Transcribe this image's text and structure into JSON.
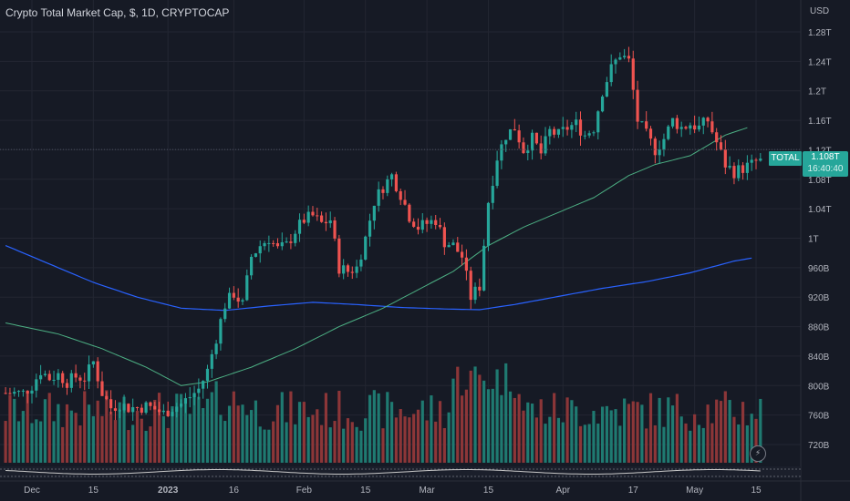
{
  "header": {
    "title": "Crypto Total Market Cap, $, 1D, CRYPTOCAP"
  },
  "axis": {
    "currency": "USD"
  },
  "price_tag": {
    "symbol": "TOTAL",
    "price": "1.108T",
    "countdown": "16:40:40"
  },
  "colors": {
    "up": "#26a69a",
    "down": "#ef5350",
    "vol_up": "#1f7a71",
    "vol_down": "#8c3638",
    "ma_short": "#4caf83",
    "ma_long": "#2962ff",
    "bg": "#161a25",
    "grid": "#232632",
    "text": "#b2b5be"
  },
  "icons": {
    "flash": "lightning-icon"
  },
  "chart_data": {
    "type": "candlestick",
    "title": "Crypto Total Market Cap, $, 1D, CRYPTOCAP",
    "y_unit": "USD",
    "y_ticks": [
      "1.28T",
      "1.24T",
      "1.2T",
      "1.16T",
      "1.12T",
      "1.08T",
      "1.04T",
      "1T",
      "960B",
      "920B",
      "880B",
      "840B",
      "800B",
      "760B",
      "720B"
    ],
    "y_tick_values": [
      1280,
      1240,
      1200,
      1160,
      1120,
      1080,
      1040,
      1000,
      960,
      920,
      880,
      840,
      800,
      760,
      720
    ],
    "x_ticks": [
      "Dec",
      "15",
      "2023",
      "16",
      "Feb",
      "15",
      "Mar",
      "15",
      "Apr",
      "17",
      "May",
      "15"
    ],
    "x_tick_days": [
      0,
      14,
      31,
      46,
      62,
      76,
      90,
      104,
      121,
      137,
      151,
      165
    ],
    "day_range": [
      -6,
      168
    ],
    "close_path": [
      [
        -6,
        790
      ],
      [
        -4,
        790
      ],
      [
        -2,
        790
      ],
      [
        0,
        800
      ],
      [
        2,
        820
      ],
      [
        4,
        810
      ],
      [
        6,
        815
      ],
      [
        8,
        805
      ],
      [
        10,
        812
      ],
      [
        12,
        810
      ],
      [
        14,
        832
      ],
      [
        16,
        790
      ],
      [
        18,
        770
      ],
      [
        20,
        775
      ],
      [
        22,
        770
      ],
      [
        24,
        770
      ],
      [
        26,
        772
      ],
      [
        28,
        768
      ],
      [
        30,
        762
      ],
      [
        32,
        770
      ],
      [
        34,
        775
      ],
      [
        36,
        785
      ],
      [
        38,
        795
      ],
      [
        40,
        820
      ],
      [
        42,
        865
      ],
      [
        44,
        910
      ],
      [
        46,
        925
      ],
      [
        48,
        910
      ],
      [
        50,
        975
      ],
      [
        52,
        990
      ],
      [
        54,
        1000
      ],
      [
        56,
        985
      ],
      [
        58,
        990
      ],
      [
        60,
        1010
      ],
      [
        62,
        1025
      ],
      [
        64,
        1030
      ],
      [
        66,
        1020
      ],
      [
        68,
        1025
      ],
      [
        70,
        960
      ],
      [
        72,
        955
      ],
      [
        74,
        960
      ],
      [
        76,
        1000
      ],
      [
        78,
        1050
      ],
      [
        80,
        1070
      ],
      [
        82,
        1085
      ],
      [
        84,
        1060
      ],
      [
        86,
        1030
      ],
      [
        88,
        1015
      ],
      [
        90,
        1020
      ],
      [
        92,
        1025
      ],
      [
        94,
        995
      ],
      [
        96,
        990
      ],
      [
        98,
        975
      ],
      [
        100,
        920
      ],
      [
        102,
        935
      ],
      [
        104,
        1050
      ],
      [
        106,
        1110
      ],
      [
        108,
        1140
      ],
      [
        110,
        1150
      ],
      [
        112,
        1120
      ],
      [
        114,
        1135
      ],
      [
        116,
        1115
      ],
      [
        118,
        1145
      ],
      [
        120,
        1140
      ],
      [
        122,
        1150
      ],
      [
        124,
        1155
      ],
      [
        126,
        1140
      ],
      [
        128,
        1150
      ],
      [
        130,
        1200
      ],
      [
        132,
        1230
      ],
      [
        134,
        1250
      ],
      [
        136,
        1240
      ],
      [
        138,
        1160
      ],
      [
        140,
        1140
      ],
      [
        142,
        1120
      ],
      [
        144,
        1135
      ],
      [
        146,
        1160
      ],
      [
        148,
        1150
      ],
      [
        150,
        1155
      ],
      [
        152,
        1150
      ],
      [
        154,
        1160
      ],
      [
        156,
        1130
      ],
      [
        158,
        1100
      ],
      [
        160,
        1090
      ],
      [
        162,
        1095
      ],
      [
        164,
        1100
      ],
      [
        166,
        1108
      ]
    ],
    "ma_short_path": [
      [
        -6,
        885
      ],
      [
        6,
        870
      ],
      [
        16,
        850
      ],
      [
        26,
        825
      ],
      [
        34,
        800
      ],
      [
        40,
        805
      ],
      [
        50,
        825
      ],
      [
        60,
        850
      ],
      [
        70,
        880
      ],
      [
        80,
        905
      ],
      [
        88,
        930
      ],
      [
        96,
        955
      ],
      [
        104,
        990
      ],
      [
        112,
        1015
      ],
      [
        120,
        1035
      ],
      [
        128,
        1055
      ],
      [
        136,
        1085
      ],
      [
        142,
        1100
      ],
      [
        150,
        1112
      ],
      [
        158,
        1140
      ],
      [
        163,
        1150
      ]
    ],
    "ma_long_path": [
      [
        -6,
        990
      ],
      [
        4,
        965
      ],
      [
        14,
        940
      ],
      [
        24,
        920
      ],
      [
        34,
        905
      ],
      [
        44,
        902
      ],
      [
        54,
        908
      ],
      [
        64,
        913
      ],
      [
        74,
        910
      ],
      [
        84,
        906
      ],
      [
        94,
        904
      ],
      [
        102,
        903
      ],
      [
        110,
        910
      ],
      [
        120,
        921
      ],
      [
        130,
        932
      ],
      [
        140,
        941
      ],
      [
        150,
        953
      ],
      [
        160,
        969
      ],
      [
        164,
        973
      ]
    ],
    "last_price": 1108
  }
}
